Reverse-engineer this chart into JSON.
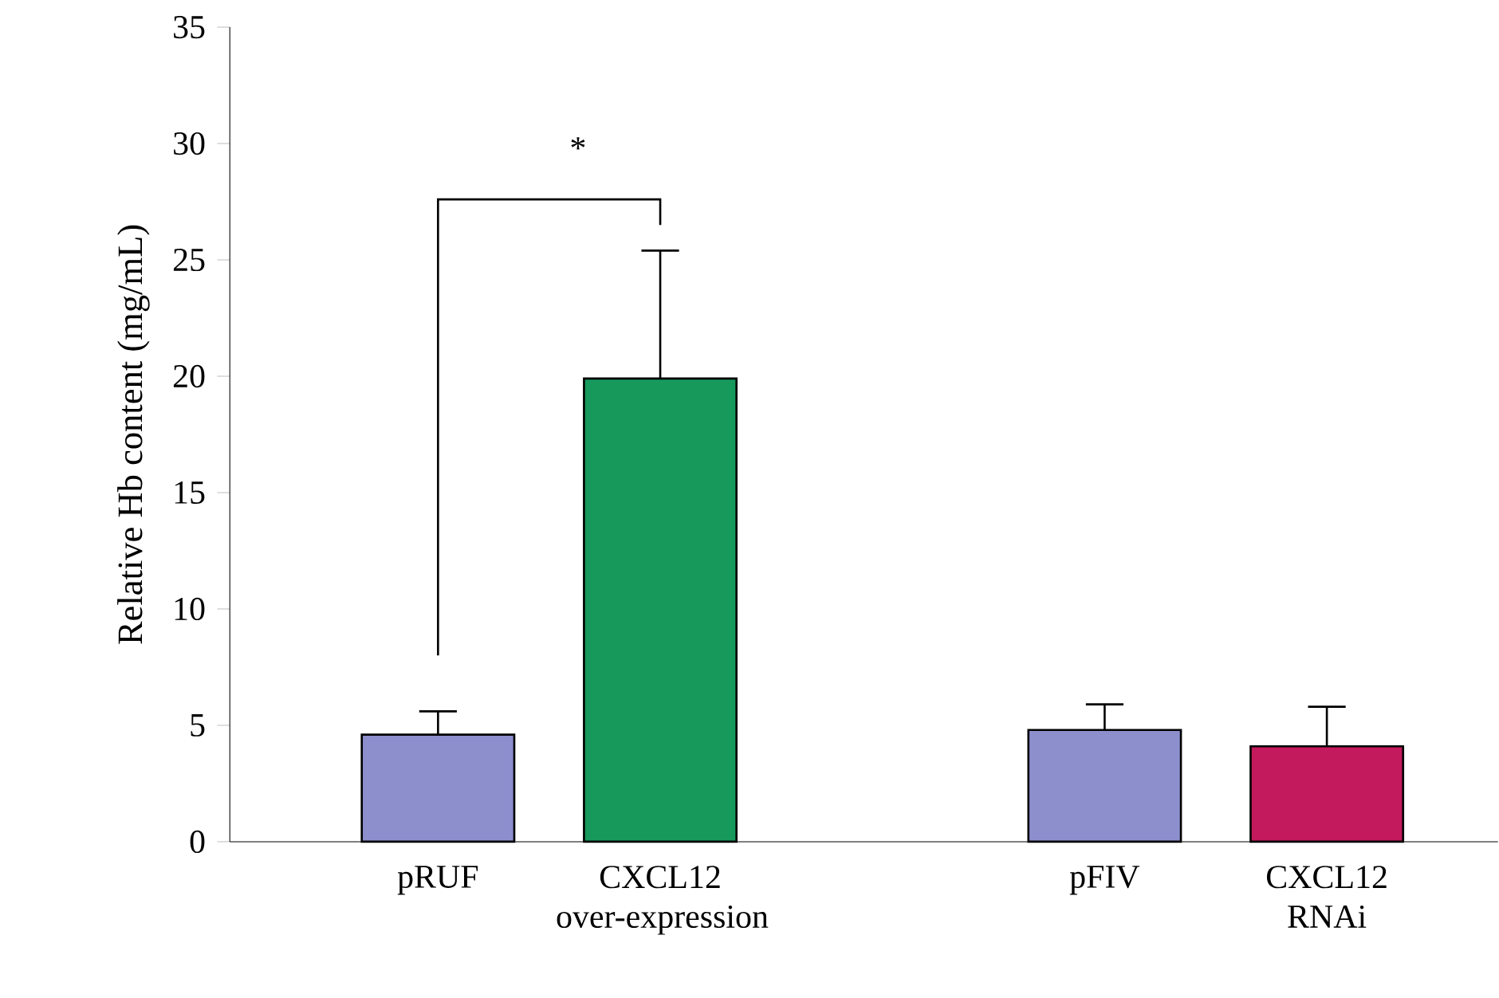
{
  "chart_data": {
    "type": "bar",
    "ylabel": "Relative Hb content (mg/mL)",
    "categories": [
      "pRUF",
      "CXCL12 over-expression",
      null,
      "pFIV",
      "CXCL12 RNAi"
    ],
    "values": [
      4.6,
      19.9,
      null,
      4.8,
      4.1
    ],
    "errors": [
      [
        4.6,
        5.6
      ],
      [
        19.9,
        25.4
      ],
      null,
      [
        4.8,
        5.9
      ],
      [
        4.1,
        5.8
      ]
    ],
    "colors": [
      "#8c8fcc",
      "#17995c",
      "#ffffff",
      "#8c8fcc",
      "#c21a5c"
    ],
    "ylim": [
      0,
      35
    ],
    "yticks": [
      0,
      5,
      10,
      15,
      20,
      25,
      30,
      35
    ],
    "annotations": [
      "*"
    ],
    "grid": false
  }
}
